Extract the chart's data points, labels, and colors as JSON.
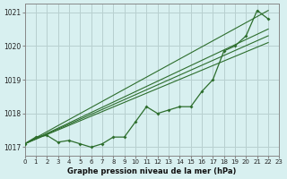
{
  "title": "Graphe pression niveau de la mer (hPa)",
  "bg_color": "#d8f0f0",
  "grid_color": "#b8d0d0",
  "line_color": "#2d6e2d",
  "xlim": [
    0,
    23
  ],
  "ylim": [
    1016.75,
    1021.25
  ],
  "yticks": [
    1017,
    1018,
    1019,
    1020,
    1021
  ],
  "xticks": [
    0,
    1,
    2,
    3,
    4,
    5,
    6,
    7,
    8,
    9,
    10,
    11,
    12,
    13,
    14,
    15,
    16,
    17,
    18,
    19,
    20,
    21,
    22,
    23
  ],
  "marker_line": [
    1017.1,
    1017.3,
    1017.35,
    1017.15,
    1017.2,
    1017.1,
    1017.0,
    1017.1,
    1017.3,
    1017.3,
    1017.75,
    1018.2,
    1018.0,
    1018.1,
    1018.2,
    1018.2,
    1018.65,
    1019.0,
    1019.85,
    1020.0,
    1020.3,
    1021.05,
    1020.8,
    null
  ],
  "bundle_lines": [
    {
      "x0": 0,
      "y0": 1017.1,
      "x1": 22,
      "y1": 1021.05
    },
    {
      "x0": 0,
      "y0": 1017.1,
      "x1": 22,
      "y1": 1020.5
    },
    {
      "x0": 0,
      "y0": 1017.1,
      "x1": 22,
      "y1": 1020.3
    },
    {
      "x0": 0,
      "y0": 1017.1,
      "x1": 22,
      "y1": 1020.1
    }
  ]
}
